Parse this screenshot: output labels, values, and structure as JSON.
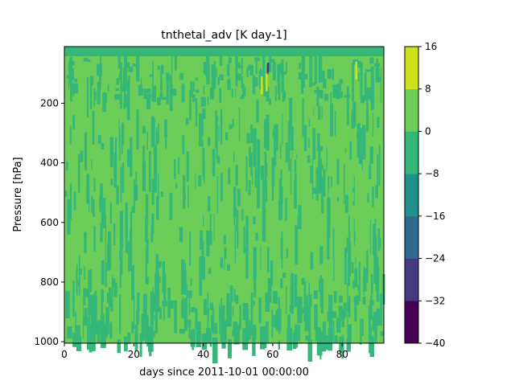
{
  "chart_data": {
    "type": "heatmap",
    "title": "tnthetal_adv [K day-1]",
    "xlabel": "days since 2011-10-01 00:00:00",
    "ylabel": "Pressure [hPa]",
    "xlim": [
      0,
      92
    ],
    "ylim": [
      1005,
      10
    ],
    "y_inverted": true,
    "x_ticks": [
      0,
      20,
      40,
      60,
      80
    ],
    "y_ticks": [
      200,
      400,
      600,
      800,
      1000
    ],
    "colorbar": {
      "levels": [
        -40,
        -32,
        -24,
        -16,
        -8,
        0,
        8,
        16
      ],
      "level_labels": [
        "−40",
        "−32",
        "−24",
        "−16",
        "−8",
        "0",
        "8",
        "16"
      ],
      "colors": [
        "#440154",
        "#443983",
        "#31688e",
        "#21918c",
        "#35b779",
        "#6ccd59",
        "#cde11d"
      ]
    },
    "field_summary": {
      "dominant_band": [
        0,
        8
      ],
      "secondary_band": [
        -8,
        0
      ],
      "top_layer_band": [
        -8,
        0
      ],
      "extreme_cells": [
        {
          "x": 58.5,
          "p": 88,
          "band": [
            -24,
            -16
          ]
        },
        {
          "x": 58.6,
          "p": 80,
          "band": [
            -32,
            -24
          ]
        },
        {
          "x": 56.8,
          "p": 140,
          "band": [
            8,
            16
          ]
        },
        {
          "x": 58.2,
          "p": 130,
          "band": [
            8,
            16
          ]
        },
        {
          "x": 84.0,
          "p": 90,
          "band": [
            8,
            16
          ]
        }
      ]
    }
  }
}
